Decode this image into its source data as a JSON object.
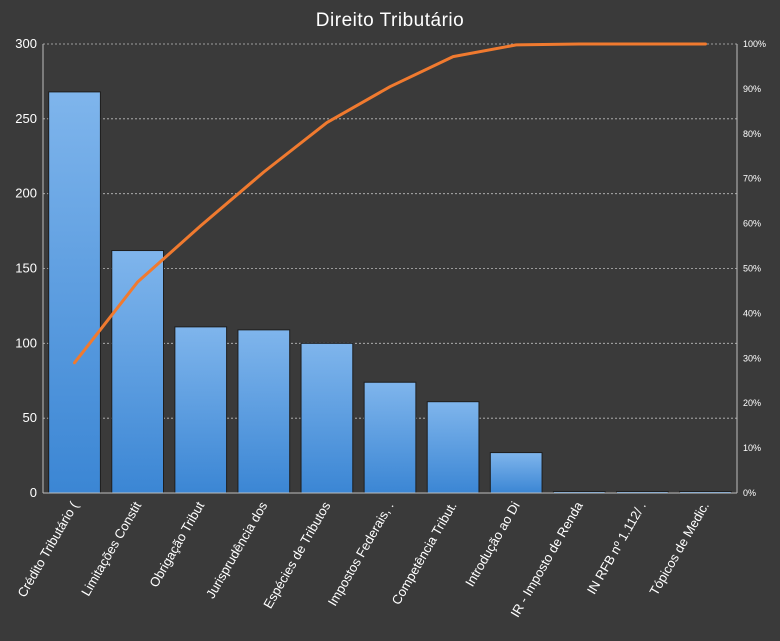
{
  "chart_data": {
    "type": "bar",
    "title": "Direito Tributário",
    "categories": [
      "Crédito Tributário (",
      "Limitações Constit",
      "Obrigação Tribut",
      "Jurisprudência dos",
      "Espécies de Tributos",
      "Impostos Federais, .",
      "Competência Tribut.",
      "Introdução ao Di",
      "IR - Imposto de Renda",
      "IN RFB nº 1.112/ .",
      "Tópicos de Medic."
    ],
    "series": [
      {
        "type": "bar",
        "values": [
          268,
          162,
          111,
          109,
          100,
          74,
          61,
          27,
          1,
          1,
          1
        ]
      },
      {
        "type": "line",
        "axis": "right",
        "values": [
          29,
          47,
          59.5,
          71.5,
          82.5,
          90.5,
          97.2,
          99.8,
          100,
          100,
          100
        ]
      }
    ],
    "ylim": [
      0,
      300
    ],
    "yticks": [
      "0",
      "50",
      "100",
      "150",
      "200",
      "250",
      "300"
    ],
    "y2lim": [
      0,
      100
    ],
    "y2ticks": [
      "0%",
      "10%",
      "20%",
      "30%",
      "40%",
      "50%",
      "60%",
      "70%",
      "80%",
      "90%",
      "100%"
    ],
    "grid": true,
    "colors": {
      "background": "#3a3a3a",
      "bar_top": "#7fb5ec",
      "bar_bottom": "#3b86d4",
      "line": "#f07a2f",
      "text": "#ffffff"
    }
  }
}
